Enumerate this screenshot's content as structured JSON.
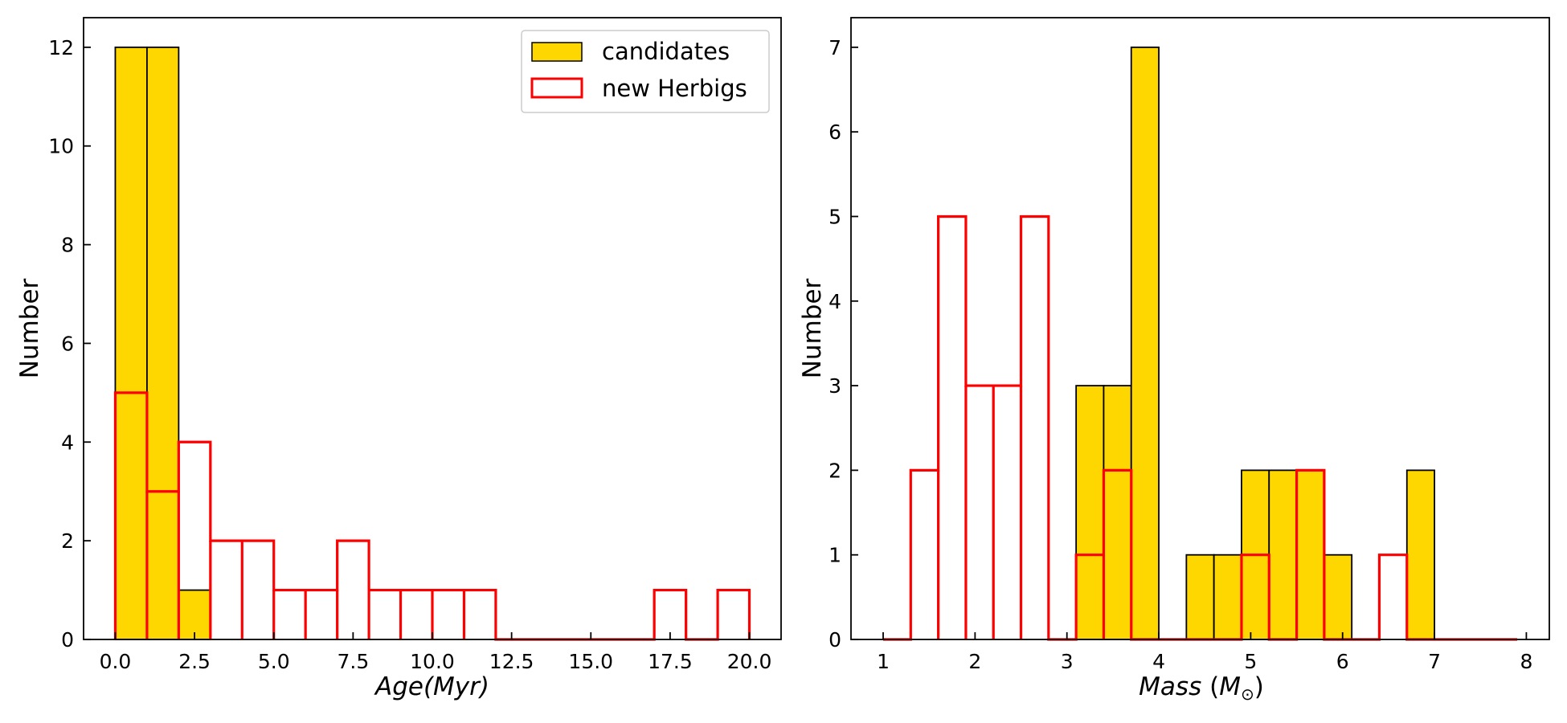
{
  "chart_data": [
    {
      "type": "histogram",
      "xlabel": "Age(Myr)",
      "ylabel": "Number",
      "xlim": [
        -1,
        21
      ],
      "ylim": [
        0,
        12.6
      ],
      "xticks": [
        0.0,
        2.5,
        5.0,
        7.5,
        10.0,
        12.5,
        15.0,
        17.5,
        20.0
      ],
      "xtick_labels": [
        "0.0",
        "2.5",
        "5.0",
        "7.5",
        "10.0",
        "12.5",
        "15.0",
        "17.5",
        "20.0"
      ],
      "yticks": [
        0,
        2,
        4,
        6,
        8,
        10,
        12
      ],
      "ytick_labels": [
        "0",
        "2",
        "4",
        "6",
        "8",
        "10",
        "12"
      ],
      "legend": {
        "position": "top-right",
        "entries": [
          "candidates",
          "new Herbigs"
        ]
      },
      "series": [
        {
          "name": "candidates",
          "style": "filled",
          "color": "#FFD700",
          "edge_color": "#000000",
          "bin_edges": [
            0,
            1,
            2,
            3
          ],
          "counts": [
            12,
            12,
            1
          ]
        },
        {
          "name": "new Herbigs",
          "style": "outline",
          "color": "#FF0000",
          "bin_edges": [
            0,
            1,
            2,
            3,
            4,
            5,
            6,
            7,
            8,
            9,
            10,
            11,
            12,
            13,
            14,
            15,
            16,
            17,
            18,
            19,
            20
          ],
          "counts": [
            5,
            3,
            4,
            2,
            2,
            1,
            1,
            2,
            1,
            1,
            1,
            1,
            0,
            0,
            0,
            0,
            0,
            1,
            0,
            1
          ]
        }
      ]
    },
    {
      "type": "histogram",
      "xlabel": "Mass",
      "xlabel_unit": "(M⊙)",
      "xlabel_unit_parts": [
        "M",
        "⊙"
      ],
      "ylabel": "Number",
      "xlim": [
        0.65,
        8.25
      ],
      "ylim": [
        0,
        7.35
      ],
      "xticks": [
        1,
        2,
        3,
        4,
        5,
        6,
        7,
        8
      ],
      "xtick_labels": [
        "1",
        "2",
        "3",
        "4",
        "5",
        "6",
        "7",
        "8"
      ],
      "yticks": [
        0,
        1,
        2,
        3,
        4,
        5,
        6,
        7
      ],
      "ytick_labels": [
        "0",
        "1",
        "2",
        "3",
        "4",
        "5",
        "6",
        "7"
      ],
      "series": [
        {
          "name": "candidates",
          "style": "filled",
          "color": "#FFD700",
          "edge_color": "#000000",
          "bin_edges": [
            3.1,
            3.4,
            3.7,
            4.0,
            4.3,
            4.6,
            4.9,
            5.2,
            5.5,
            5.8,
            6.1,
            6.4,
            6.7,
            7.0
          ],
          "counts": [
            3,
            3,
            7,
            0,
            1,
            1,
            2,
            2,
            2,
            1,
            0,
            0,
            2
          ]
        },
        {
          "name": "new Herbigs",
          "style": "outline",
          "color": "#FF0000",
          "bin_edges": [
            1.0,
            1.3,
            1.6,
            1.9,
            2.2,
            2.5,
            2.8,
            3.1,
            3.4,
            3.7,
            4.0,
            4.3,
            4.6,
            4.9,
            5.2,
            5.5,
            5.8,
            6.1,
            6.4,
            6.7,
            7.0,
            7.3,
            7.6,
            7.9
          ],
          "counts": [
            0,
            2,
            5,
            3,
            3,
            5,
            0,
            1,
            2,
            0,
            0,
            0,
            0,
            1,
            0,
            2,
            0,
            0,
            1,
            0,
            0,
            0,
            0
          ]
        }
      ]
    }
  ]
}
